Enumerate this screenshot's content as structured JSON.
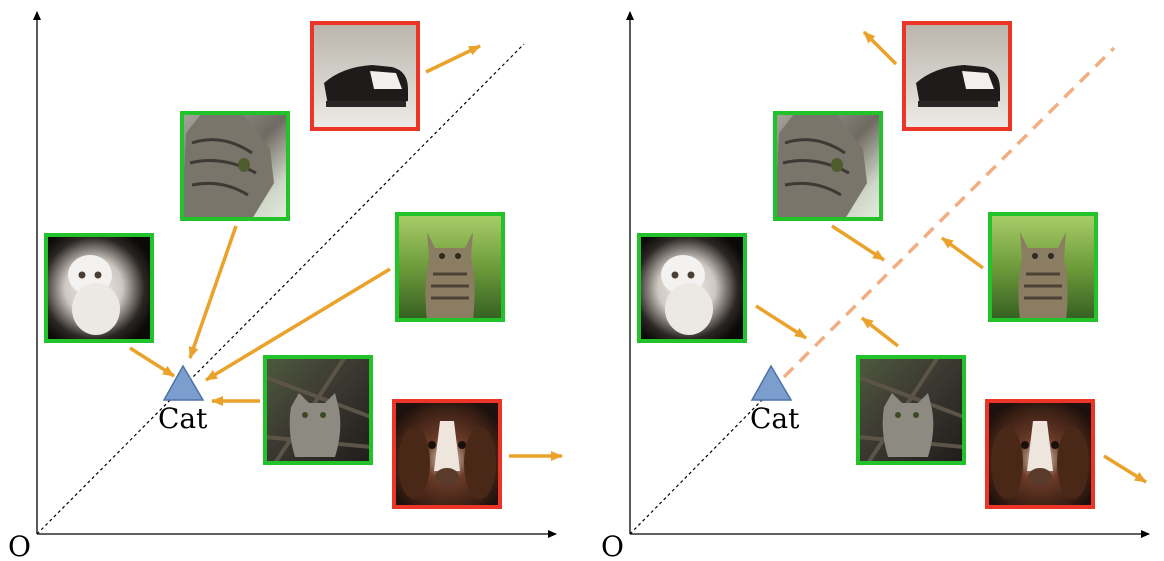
{
  "panels": [
    {
      "id": "left",
      "origin_label": "O",
      "anchor_label": "Cat"
    },
    {
      "id": "right",
      "origin_label": "O",
      "anchor_label": "Cat"
    }
  ],
  "images": {
    "positive": [
      "persian-cat-photo",
      "tabby-cat-closeup-photo",
      "cat-in-grass-photo",
      "cat-in-branches-photo"
    ],
    "negative": [
      "shoe-photo",
      "spaniel-dog-photo"
    ]
  },
  "colors": {
    "positive_border": "#22c32a",
    "negative_border": "#ec3527",
    "arrow": "#eba22a",
    "anchor_fill": "#7b9ecf",
    "right_boundary": "#f2ae80"
  }
}
